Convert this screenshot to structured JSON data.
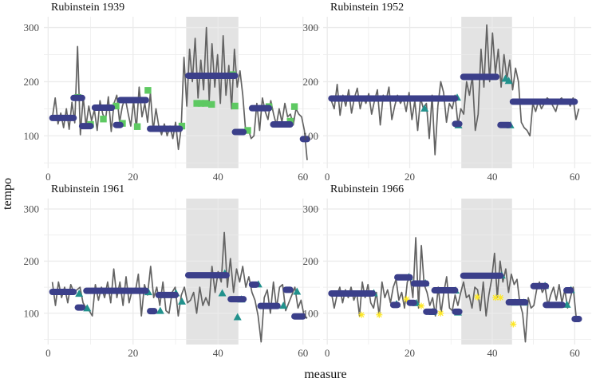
{
  "chart_data": {
    "type": "line",
    "xlabel": "measure",
    "ylabel": "tempo",
    "x_ticks": [
      0,
      20,
      40,
      60
    ],
    "y_ticks": [
      100,
      200,
      300
    ],
    "xlim": [
      -1,
      64
    ],
    "ylim": [
      40,
      320
    ],
    "shaded_region": [
      32.5,
      44.8
    ],
    "colors": {
      "line": "#636363",
      "segment": "#3b3f8a",
      "marker_square": "#5ec962",
      "marker_triangle": "#21918c",
      "marker_star": "#fde725",
      "shade": "#e3e3e3",
      "grid": "#ebebeb"
    },
    "panels": [
      {
        "title": "Rubinstein 1939",
        "marker": "square",
        "segments": [
          {
            "x0": 1,
            "x1": 6,
            "y": 133
          },
          {
            "x0": 6,
            "x1": 8,
            "y": 170
          },
          {
            "x0": 8,
            "x1": 10,
            "y": 118
          },
          {
            "x0": 11,
            "x1": 15,
            "y": 152
          },
          {
            "x0": 16,
            "x1": 17,
            "y": 120
          },
          {
            "x0": 17,
            "x1": 23,
            "y": 166
          },
          {
            "x0": 24,
            "x1": 31,
            "y": 113
          },
          {
            "x0": 33,
            "x1": 44,
            "y": 211
          },
          {
            "x0": 44,
            "x1": 46,
            "y": 107
          },
          {
            "x0": 48,
            "x1": 52,
            "y": 151
          },
          {
            "x0": 53,
            "x1": 57,
            "y": 121
          },
          {
            "x0": 60,
            "x1": 61,
            "y": 94
          }
        ],
        "markers": [
          [
            7,
            171
          ],
          [
            10,
            121
          ],
          [
            13,
            131
          ],
          [
            16,
            155
          ],
          [
            17.5,
            123
          ],
          [
            21,
            117
          ],
          [
            23.5,
            184
          ],
          [
            31.5,
            118
          ],
          [
            35,
            160
          ],
          [
            36,
            160
          ],
          [
            37,
            160
          ],
          [
            38.5,
            158
          ],
          [
            43.5,
            213
          ],
          [
            44,
            155
          ],
          [
            47,
            110
          ],
          [
            52,
            154
          ],
          [
            57,
            127
          ],
          [
            58,
            154
          ]
        ],
        "tempo": [
          133,
          170,
          122,
          142,
          115,
          150,
          112,
          162,
          124,
          265,
          102,
          172,
          118,
          155,
          128,
          148,
          110,
          165,
          140,
          130,
          172,
          108,
          160,
          175,
          125,
          155,
          170,
          143,
          118,
          165,
          112,
          190,
          135,
          160,
          125,
          180,
          110,
          150,
          118,
          102,
          122,
          100,
          118,
          95,
          125,
          75,
          115,
          245,
          155,
          260,
          200,
          280,
          170,
          240,
          185,
          300,
          165,
          270,
          190,
          250,
          160,
          285,
          175,
          230,
          150,
          260,
          190,
          220,
          175,
          110,
          112,
          95,
          100,
          160,
          110,
          170,
          145,
          130,
          165,
          140,
          120,
          150,
          125,
          160,
          135,
          140,
          120,
          150,
          140,
          135,
          110,
          55
        ]
      },
      {
        "title": "Rubinstein 1952",
        "marker": "triangle",
        "segments": [
          {
            "x0": 1,
            "x1": 31,
            "y": 169
          },
          {
            "x0": 31,
            "x1": 32,
            "y": 122
          },
          {
            "x0": 33,
            "x1": 41,
            "y": 209
          },
          {
            "x0": 42,
            "x1": 44,
            "y": 120
          },
          {
            "x0": 45,
            "x1": 60,
            "y": 163
          }
        ],
        "markers": [
          [
            31.5,
            170
          ],
          [
            31.8,
            119
          ],
          [
            43.2,
            205
          ],
          [
            44,
            201
          ],
          [
            44.4,
            119
          ],
          [
            23.6,
            150
          ]
        ],
        "tempo": [
          165,
          150,
          195,
          138,
          175,
          155,
          185,
          142,
          170,
          188,
          150,
          172,
          160,
          178,
          140,
          165,
          185,
          120,
          175,
          165,
          190,
          130,
          155,
          175,
          160,
          170,
          145,
          180,
          130,
          165,
          110,
          170,
          150,
          160,
          95,
          175,
          65,
          155,
          200,
          180,
          125,
          160,
          150,
          175,
          120,
          150,
          140,
          200,
          175,
          210,
          110,
          140,
          260,
          190,
          305,
          200,
          290,
          215,
          260,
          190,
          250,
          205,
          240,
          185,
          225,
          200,
          125,
          115,
          110,
          100,
          160,
          145,
          165,
          150,
          160,
          170,
          165,
          155,
          145,
          165,
          170,
          160,
          165,
          155,
          170,
          130,
          150
        ]
      },
      {
        "title": "Rubinstein 1961",
        "marker": "triangle",
        "segments": [
          {
            "x0": 1,
            "x1": 6,
            "y": 141
          },
          {
            "x0": 7,
            "x1": 8,
            "y": 111
          },
          {
            "x0": 9,
            "x1": 23,
            "y": 143
          },
          {
            "x0": 24,
            "x1": 25,
            "y": 104
          },
          {
            "x0": 26,
            "x1": 30,
            "y": 135
          },
          {
            "x0": 33,
            "x1": 42,
            "y": 173
          },
          {
            "x0": 43,
            "x1": 46,
            "y": 127
          },
          {
            "x0": 48,
            "x1": 49,
            "y": 155
          },
          {
            "x0": 50,
            "x1": 54,
            "y": 114
          },
          {
            "x0": 56,
            "x1": 57,
            "y": 145
          },
          {
            "x0": 58,
            "x1": 60,
            "y": 94
          }
        ],
        "markers": [
          [
            7.3,
            137
          ],
          [
            9.2,
            109
          ],
          [
            23.6,
            140
          ],
          [
            26.4,
            104
          ],
          [
            30.1,
            138
          ],
          [
            31.5,
            122
          ],
          [
            41,
            138
          ],
          [
            41.6,
            176
          ],
          [
            44.6,
            92
          ],
          [
            45.5,
            126
          ],
          [
            49.5,
            155
          ],
          [
            55.4,
            114
          ],
          [
            58.6,
            141
          ]
        ],
        "tempo": [
          160,
          115,
          160,
          130,
          150,
          120,
          155,
          140,
          145,
          150,
          120,
          110,
          105,
          95,
          155,
          125,
          150,
          130,
          160,
          120,
          185,
          130,
          160,
          115,
          170,
          120,
          145,
          140,
          175,
          95,
          155,
          135,
          190,
          130,
          150,
          115,
          160,
          105,
          100,
          140,
          150,
          95,
          135,
          150,
          120,
          125,
          140,
          100,
          150,
          115,
          130,
          115,
          190,
          140,
          180,
          160,
          255,
          150,
          205,
          140,
          185,
          160,
          190,
          150,
          170,
          140,
          125,
          95,
          45,
          130,
          145,
          100,
          160,
          110,
          150,
          155,
          105,
          120,
          135,
          150,
          110,
          125,
          95,
          90
        ]
      },
      {
        "title": "Rubinstein 1966",
        "marker": "triangle",
        "segments": [
          {
            "x0": 1,
            "x1": 11,
            "y": 138
          },
          {
            "x0": 16,
            "x1": 17,
            "y": 116
          },
          {
            "x0": 17,
            "x1": 20,
            "y": 169
          },
          {
            "x0": 20,
            "x1": 21,
            "y": 120
          },
          {
            "x0": 21,
            "x1": 24,
            "y": 157
          },
          {
            "x0": 24,
            "x1": 26,
            "y": 103
          },
          {
            "x0": 26,
            "x1": 31,
            "y": 144
          },
          {
            "x0": 31,
            "x1": 32,
            "y": 103
          },
          {
            "x0": 33,
            "x1": 42,
            "y": 172
          },
          {
            "x0": 44,
            "x1": 48,
            "y": 121
          },
          {
            "x0": 50,
            "x1": 53,
            "y": 152
          },
          {
            "x0": 53,
            "x1": 57,
            "y": 116
          },
          {
            "x0": 58,
            "x1": 59,
            "y": 144
          },
          {
            "x0": 60,
            "x1": 61,
            "y": 89
          }
        ],
        "markers": [
          [
            11.3,
            138
          ],
          [
            16.8,
            117
          ],
          [
            19.8,
            169
          ],
          [
            21.6,
            119
          ],
          [
            23.8,
            157
          ],
          [
            25.6,
            102
          ],
          [
            31.1,
            143
          ],
          [
            31.7,
            101
          ],
          [
            42.3,
            172
          ],
          [
            45.5,
            120
          ],
          [
            47.7,
            120
          ],
          [
            52.8,
            152
          ],
          [
            58.1,
            116
          ],
          [
            59.1,
            144
          ]
        ],
        "stars": [
          [
            8.3,
            97
          ],
          [
            12.6,
            97
          ],
          [
            19.2,
            127
          ],
          [
            22.8,
            114
          ],
          [
            36.4,
            131
          ],
          [
            40.8,
            130
          ],
          [
            42,
            130
          ],
          [
            45.1,
            79
          ],
          [
            27.5,
            100
          ]
        ],
        "tempo": [
          140,
          110,
          135,
          150,
          120,
          145,
          130,
          150,
          125,
          140,
          95,
          160,
          130,
          155,
          120,
          110,
          140,
          95,
          160,
          130,
          145,
          120,
          150,
          165,
          125,
          140,
          110,
          160,
          170,
          130,
          245,
          110,
          230,
          155,
          140,
          115,
          130,
          95,
          150,
          100,
          140,
          170,
          110,
          105,
          135,
          115,
          140,
          160,
          130,
          135,
          110,
          150,
          145,
          105,
          160,
          95,
          135,
          165,
          215,
          130,
          200,
          160,
          185,
          140,
          175,
          155,
          165,
          120,
          100,
          45,
          130,
          110,
          115,
          145,
          160,
          140,
          150,
          115,
          135,
          150,
          125,
          155,
          120,
          145,
          110,
          130,
          150,
          95,
          90
        ]
      }
    ]
  }
}
